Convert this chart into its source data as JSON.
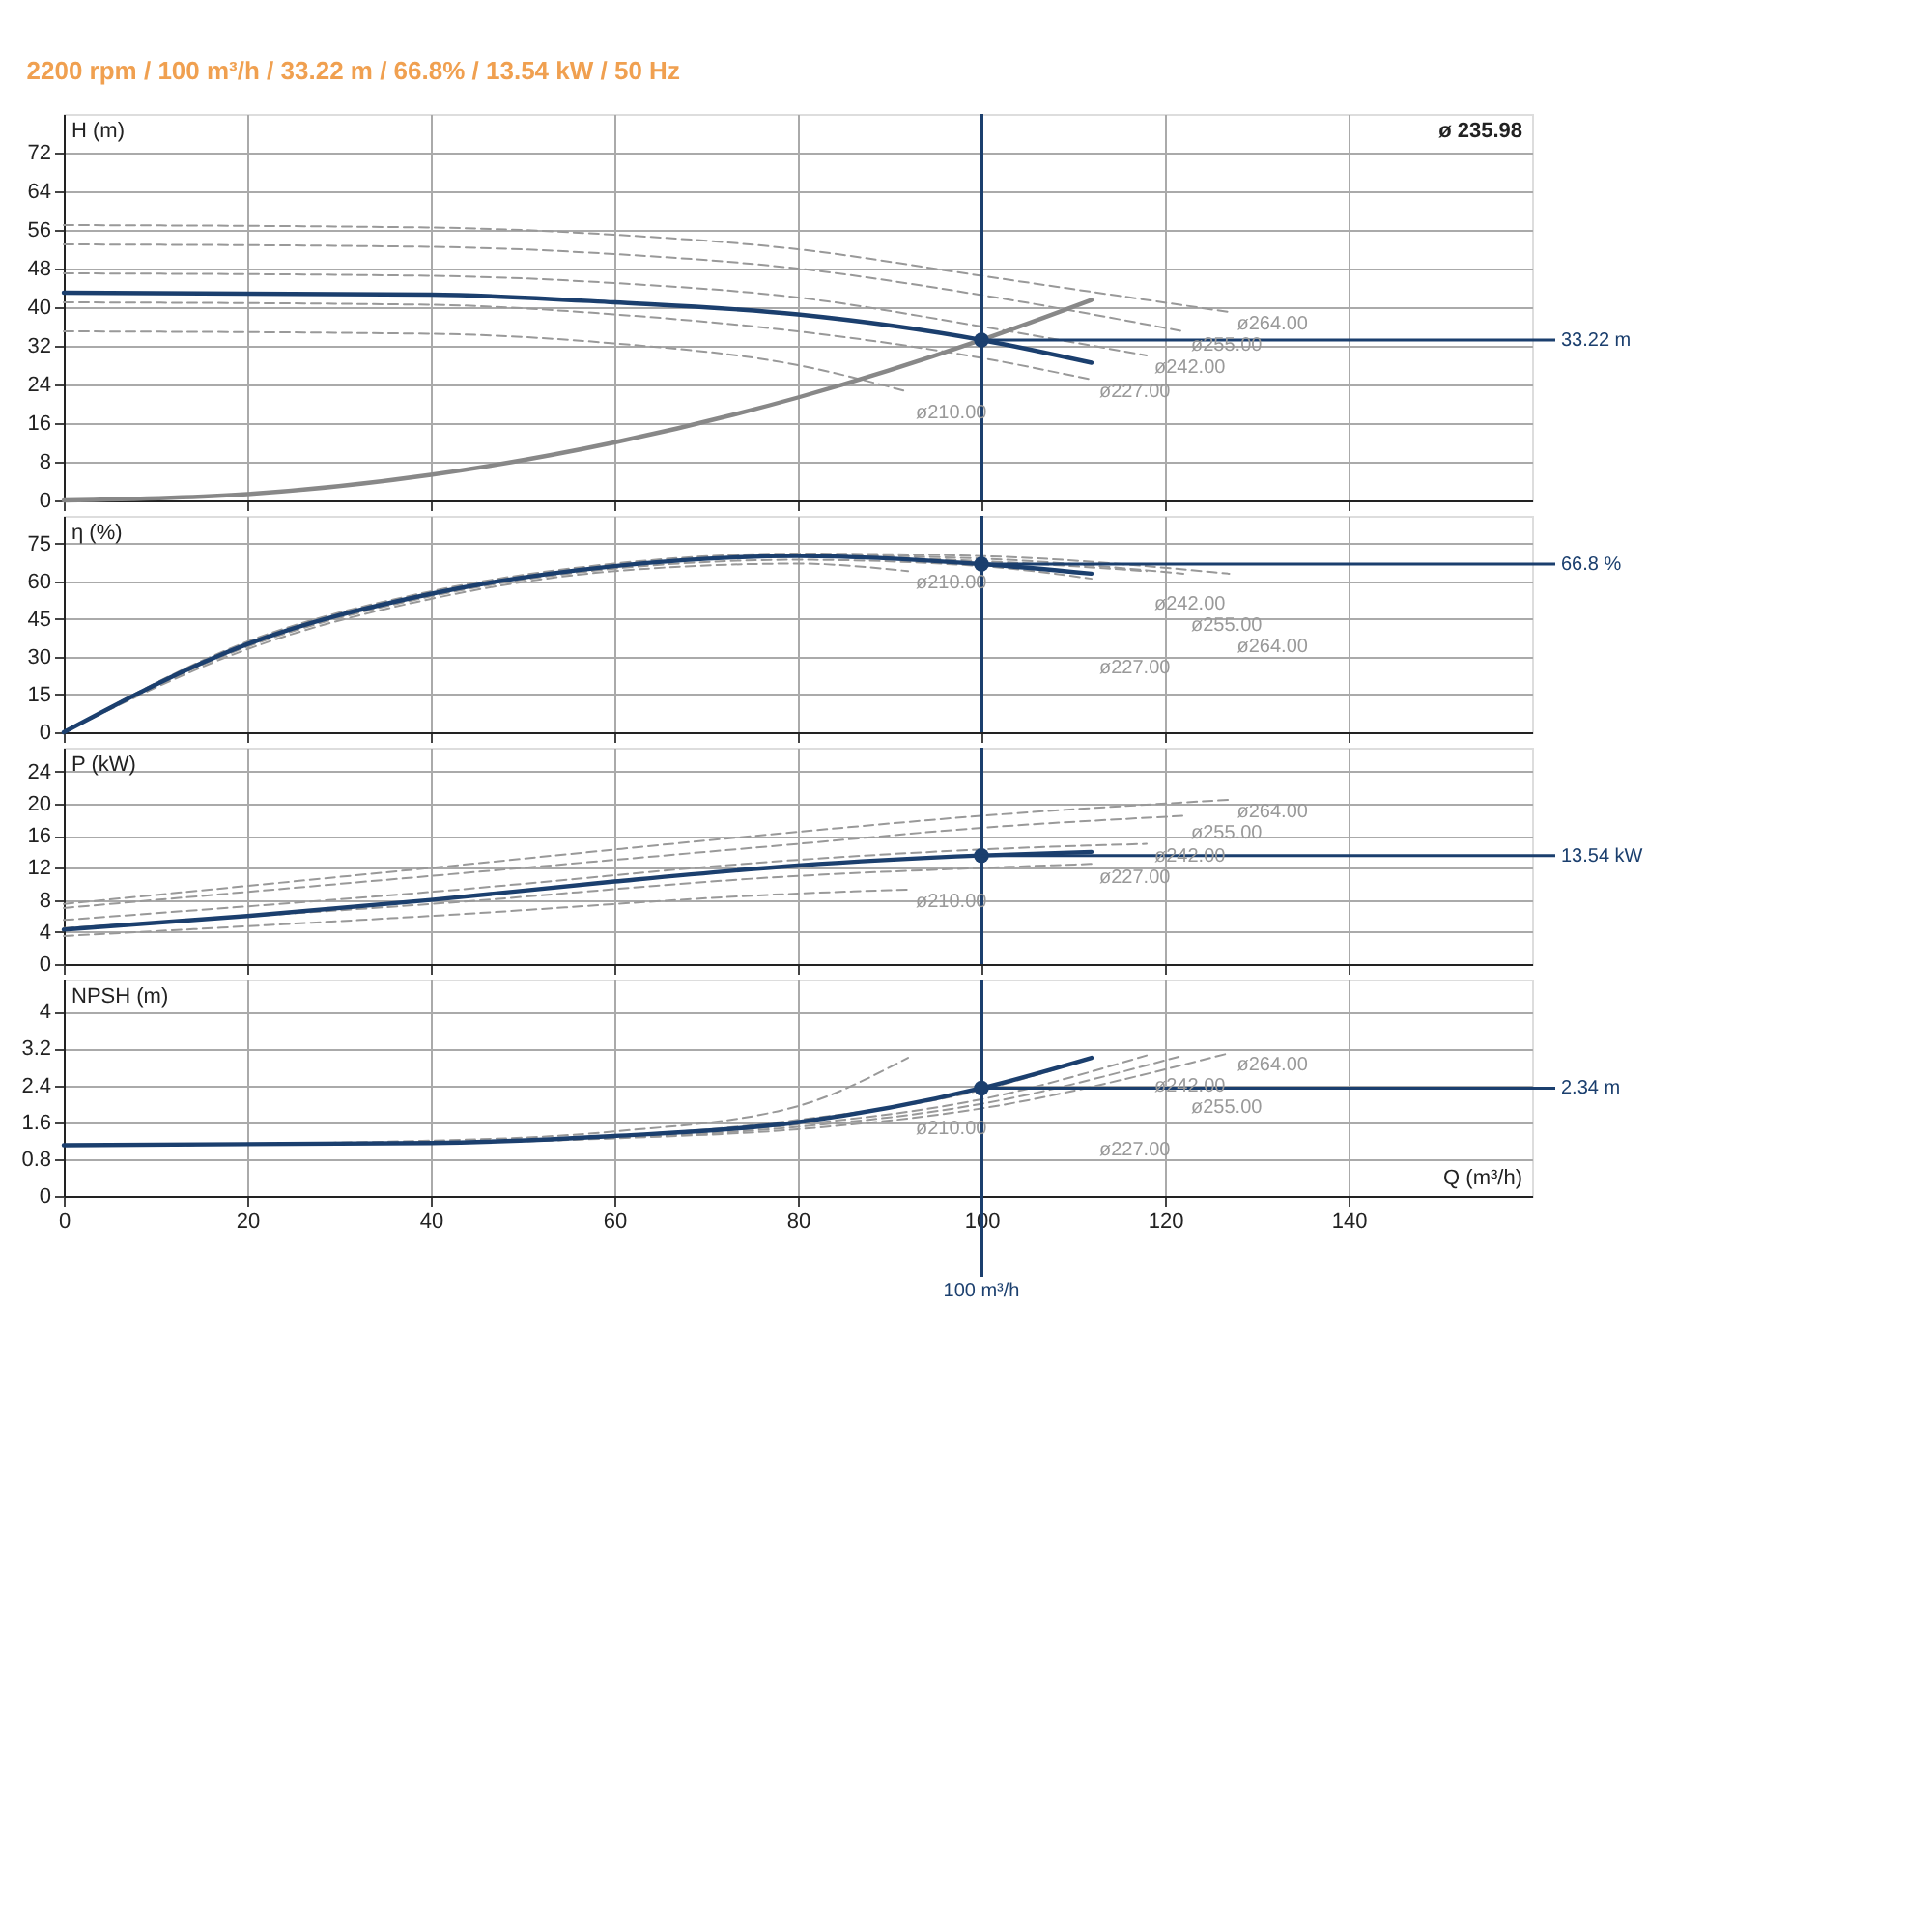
{
  "chart_data": [
    {
      "type": "line",
      "title": "2200 rpm / 100 m³/h / 33.22 m / 66.8% / 13.54 kW / 50 Hz",
      "ylabel": "H (m)",
      "xlim": [
        0,
        160
      ],
      "xticks": [
        0,
        20,
        40,
        60,
        80,
        100,
        120,
        140
      ],
      "ylim": [
        0,
        80
      ],
      "yticks": [
        0,
        8,
        16,
        24,
        32,
        40,
        48,
        56,
        64,
        72
      ],
      "grid": true,
      "tick_labels": "y",
      "series": [
        {
          "name": "ø210.00",
          "color": "#999999",
          "line_style": "dashed",
          "x": [
            0,
            40,
            60,
            80,
            92
          ],
          "values": [
            35,
            34.5,
            32.5,
            28,
            22.5
          ]
        },
        {
          "name": "ø227.00",
          "color": "#999999",
          "line_style": "dashed",
          "x": [
            0,
            40,
            60,
            80,
            100,
            112
          ],
          "values": [
            41,
            40.5,
            38.5,
            35,
            29.5,
            25
          ]
        },
        {
          "name": "ø242.00",
          "color": "#999999",
          "line_style": "dashed",
          "x": [
            0,
            40,
            60,
            80,
            100,
            118
          ],
          "values": [
            47,
            46.5,
            45,
            42,
            36,
            30
          ]
        },
        {
          "name": "ø255.00",
          "color": "#999999",
          "line_style": "dashed",
          "x": [
            0,
            40,
            60,
            80,
            100,
            122
          ],
          "values": [
            53,
            52.5,
            51,
            48,
            42.5,
            35
          ]
        },
        {
          "name": "ø264.00",
          "color": "#999999",
          "line_style": "dashed",
          "x": [
            0,
            40,
            60,
            80,
            100,
            127
          ],
          "values": [
            57,
            56.5,
            55,
            52,
            46.5,
            39
          ]
        },
        {
          "color": "#888888",
          "line_style": "solid",
          "x": [
            0,
            20,
            40,
            60,
            80,
            100,
            112
          ],
          "values": [
            0,
            1.3,
            5.3,
            12,
            21.3,
            33.22,
            41.5
          ]
        },
        {
          "color": "#1b3f6e",
          "line_style": "solid",
          "x": [
            0,
            40,
            60,
            80,
            100,
            112
          ],
          "values": [
            43,
            42.6,
            41,
            38.5,
            33.22,
            28.5
          ]
        },
        {
          "type": "scatter",
          "marker": "circle",
          "color": "#1b3f6e",
          "x": [
            100
          ],
          "values": [
            33.22
          ]
        }
      ],
      "ref_lines": [
        {
          "axis": "x",
          "value": 100,
          "label": null,
          "color": "#1b3f6e"
        },
        {
          "axis": "y",
          "value": 33.22,
          "label": "33.22 m",
          "color": "#1b3f6e"
        }
      ],
      "annotations": [
        "ø 235.98"
      ]
    },
    {
      "type": "line",
      "ylabel": "η (%)",
      "xlim": [
        0,
        160
      ],
      "xticks": [
        0,
        20,
        40,
        60,
        80,
        100,
        120,
        140
      ],
      "ylim": [
        0,
        86
      ],
      "yticks": [
        0,
        15,
        30,
        45,
        60,
        75
      ],
      "grid": true,
      "tick_labels": "y",
      "series": [
        {
          "name": "ø210.00",
          "color": "#999999",
          "line_style": "dashed",
          "x": [
            0,
            20,
            40,
            60,
            80,
            92
          ],
          "values": [
            0,
            33,
            53,
            64,
            67,
            64
          ]
        },
        {
          "name": "ø227.00",
          "color": "#999999",
          "line_style": "dashed",
          "x": [
            0,
            20,
            40,
            60,
            80,
            100,
            112
          ],
          "values": [
            0,
            34,
            54,
            65,
            68.5,
            66,
            61
          ]
        },
        {
          "name": "ø242.00",
          "color": "#999999",
          "line_style": "dashed",
          "x": [
            0,
            20,
            40,
            60,
            80,
            100,
            118
          ],
          "values": [
            0,
            35,
            55,
            66,
            70,
            68,
            64
          ]
        },
        {
          "name": "ø255.00",
          "color": "#999999",
          "line_style": "dashed",
          "x": [
            0,
            20,
            40,
            60,
            80,
            100,
            122
          ],
          "values": [
            0,
            35.5,
            55.5,
            66.5,
            70.5,
            69,
            63
          ]
        },
        {
          "name": "ø264.00",
          "color": "#999999",
          "line_style": "dashed",
          "x": [
            0,
            20,
            40,
            60,
            80,
            100,
            127
          ],
          "values": [
            0,
            36,
            56,
            67,
            71,
            70,
            63
          ]
        },
        {
          "color": "#1b3f6e",
          "line_style": "solid",
          "x": [
            0,
            20,
            40,
            60,
            80,
            100,
            112
          ],
          "values": [
            0,
            35,
            55,
            66,
            70,
            66.8,
            63
          ]
        },
        {
          "type": "scatter",
          "marker": "circle",
          "color": "#1b3f6e",
          "x": [
            100
          ],
          "values": [
            66.8
          ]
        }
      ],
      "ref_lines": [
        {
          "axis": "x",
          "value": 100,
          "label": null,
          "color": "#1b3f6e"
        },
        {
          "axis": "y",
          "value": 66.8,
          "label": "66.8 %",
          "color": "#1b3f6e"
        }
      ]
    },
    {
      "type": "line",
      "ylabel": "P (kW)",
      "xlim": [
        0,
        160
      ],
      "xticks": [
        0,
        20,
        40,
        60,
        80,
        100,
        120,
        140
      ],
      "ylim": [
        0,
        27
      ],
      "yticks": [
        0,
        4,
        8,
        12,
        16,
        20,
        24
      ],
      "grid": true,
      "tick_labels": "y",
      "series": [
        {
          "name": "ø210.00",
          "color": "#999999",
          "line_style": "dashed",
          "x": [
            0,
            40,
            80,
            92
          ],
          "values": [
            3.5,
            6,
            8.8,
            9.3
          ]
        },
        {
          "name": "ø227.00",
          "color": "#999999",
          "line_style": "dashed",
          "x": [
            0,
            40,
            80,
            100,
            112
          ],
          "values": [
            4.5,
            7.5,
            11,
            12,
            12.5
          ]
        },
        {
          "name": "ø242.00",
          "color": "#999999",
          "line_style": "dashed",
          "x": [
            0,
            40,
            80,
            100,
            118
          ],
          "values": [
            5.5,
            9,
            13,
            14.3,
            15
          ]
        },
        {
          "name": "ø255.00",
          "color": "#999999",
          "line_style": "dashed",
          "x": [
            0,
            40,
            80,
            100,
            122
          ],
          "values": [
            7,
            11,
            15,
            17,
            18.5
          ]
        },
        {
          "name": "ø264.00",
          "color": "#999999",
          "line_style": "dashed",
          "x": [
            0,
            40,
            80,
            100,
            127
          ],
          "values": [
            7.5,
            12,
            16.5,
            18.5,
            20.5
          ]
        },
        {
          "color": "#1b3f6e",
          "line_style": "solid",
          "x": [
            0,
            20,
            40,
            60,
            80,
            100,
            112
          ],
          "values": [
            4.3,
            6,
            8,
            10.3,
            12.3,
            13.54,
            14
          ]
        },
        {
          "type": "scatter",
          "marker": "circle",
          "color": "#1b3f6e",
          "x": [
            100
          ],
          "values": [
            13.54
          ]
        }
      ],
      "ref_lines": [
        {
          "axis": "x",
          "value": 100,
          "label": null,
          "color": "#1b3f6e"
        },
        {
          "axis": "y",
          "value": 13.54,
          "label": "13.54 kW",
          "color": "#1b3f6e"
        }
      ]
    },
    {
      "type": "line",
      "ylabel": "NPSH (m)",
      "xlabel": "Q (m³/h)",
      "xlim": [
        0,
        160
      ],
      "xticks": [
        0,
        20,
        40,
        60,
        80,
        100,
        120,
        140
      ],
      "ylim": [
        0,
        4.7
      ],
      "yticks": [
        0,
        0.8,
        1.6,
        2.4,
        3.2,
        4
      ],
      "grid": true,
      "series": [
        {
          "name": "ø210.00",
          "color": "#999999",
          "line_style": "dashed",
          "x": [
            0,
            40,
            60,
            80,
            92
          ],
          "values": [
            1.1,
            1.2,
            1.4,
            1.95,
            3.0
          ]
        },
        {
          "name": "ø227.00",
          "color": "#999999",
          "line_style": "dashed",
          "x": [
            0,
            40,
            60,
            80,
            100,
            112
          ],
          "values": [
            1.1,
            1.15,
            1.3,
            1.65,
            2.3,
            3.0
          ]
        },
        {
          "name": "ø242.00",
          "color": "#999999",
          "line_style": "dashed",
          "x": [
            0,
            40,
            60,
            80,
            100,
            118
          ],
          "values": [
            1.1,
            1.15,
            1.28,
            1.55,
            2.1,
            3.05
          ]
        },
        {
          "name": "ø255.00",
          "color": "#999999",
          "line_style": "dashed",
          "x": [
            0,
            40,
            60,
            80,
            100,
            122
          ],
          "values": [
            1.1,
            1.15,
            1.26,
            1.5,
            2.0,
            3.05
          ]
        },
        {
          "name": "ø264.00",
          "color": "#999999",
          "line_style": "dashed",
          "x": [
            0,
            40,
            60,
            80,
            100,
            127
          ],
          "values": [
            1.1,
            1.15,
            1.25,
            1.45,
            1.9,
            3.1
          ]
        },
        {
          "color": "#1b3f6e",
          "line_style": "solid",
          "x": [
            0,
            40,
            60,
            80,
            100,
            112
          ],
          "values": [
            1.1,
            1.15,
            1.3,
            1.6,
            2.34,
            3.0
          ]
        },
        {
          "type": "scatter",
          "marker": "circle",
          "color": "#1b3f6e",
          "x": [
            100
          ],
          "values": [
            2.34
          ]
        }
      ],
      "ref_lines": [
        {
          "axis": "x",
          "value": 100,
          "label": "100 m³/h",
          "color": "#1b3f6e"
        },
        {
          "axis": "y",
          "value": 2.34,
          "label": "2.34 m",
          "color": "#1b3f6e"
        }
      ]
    }
  ]
}
